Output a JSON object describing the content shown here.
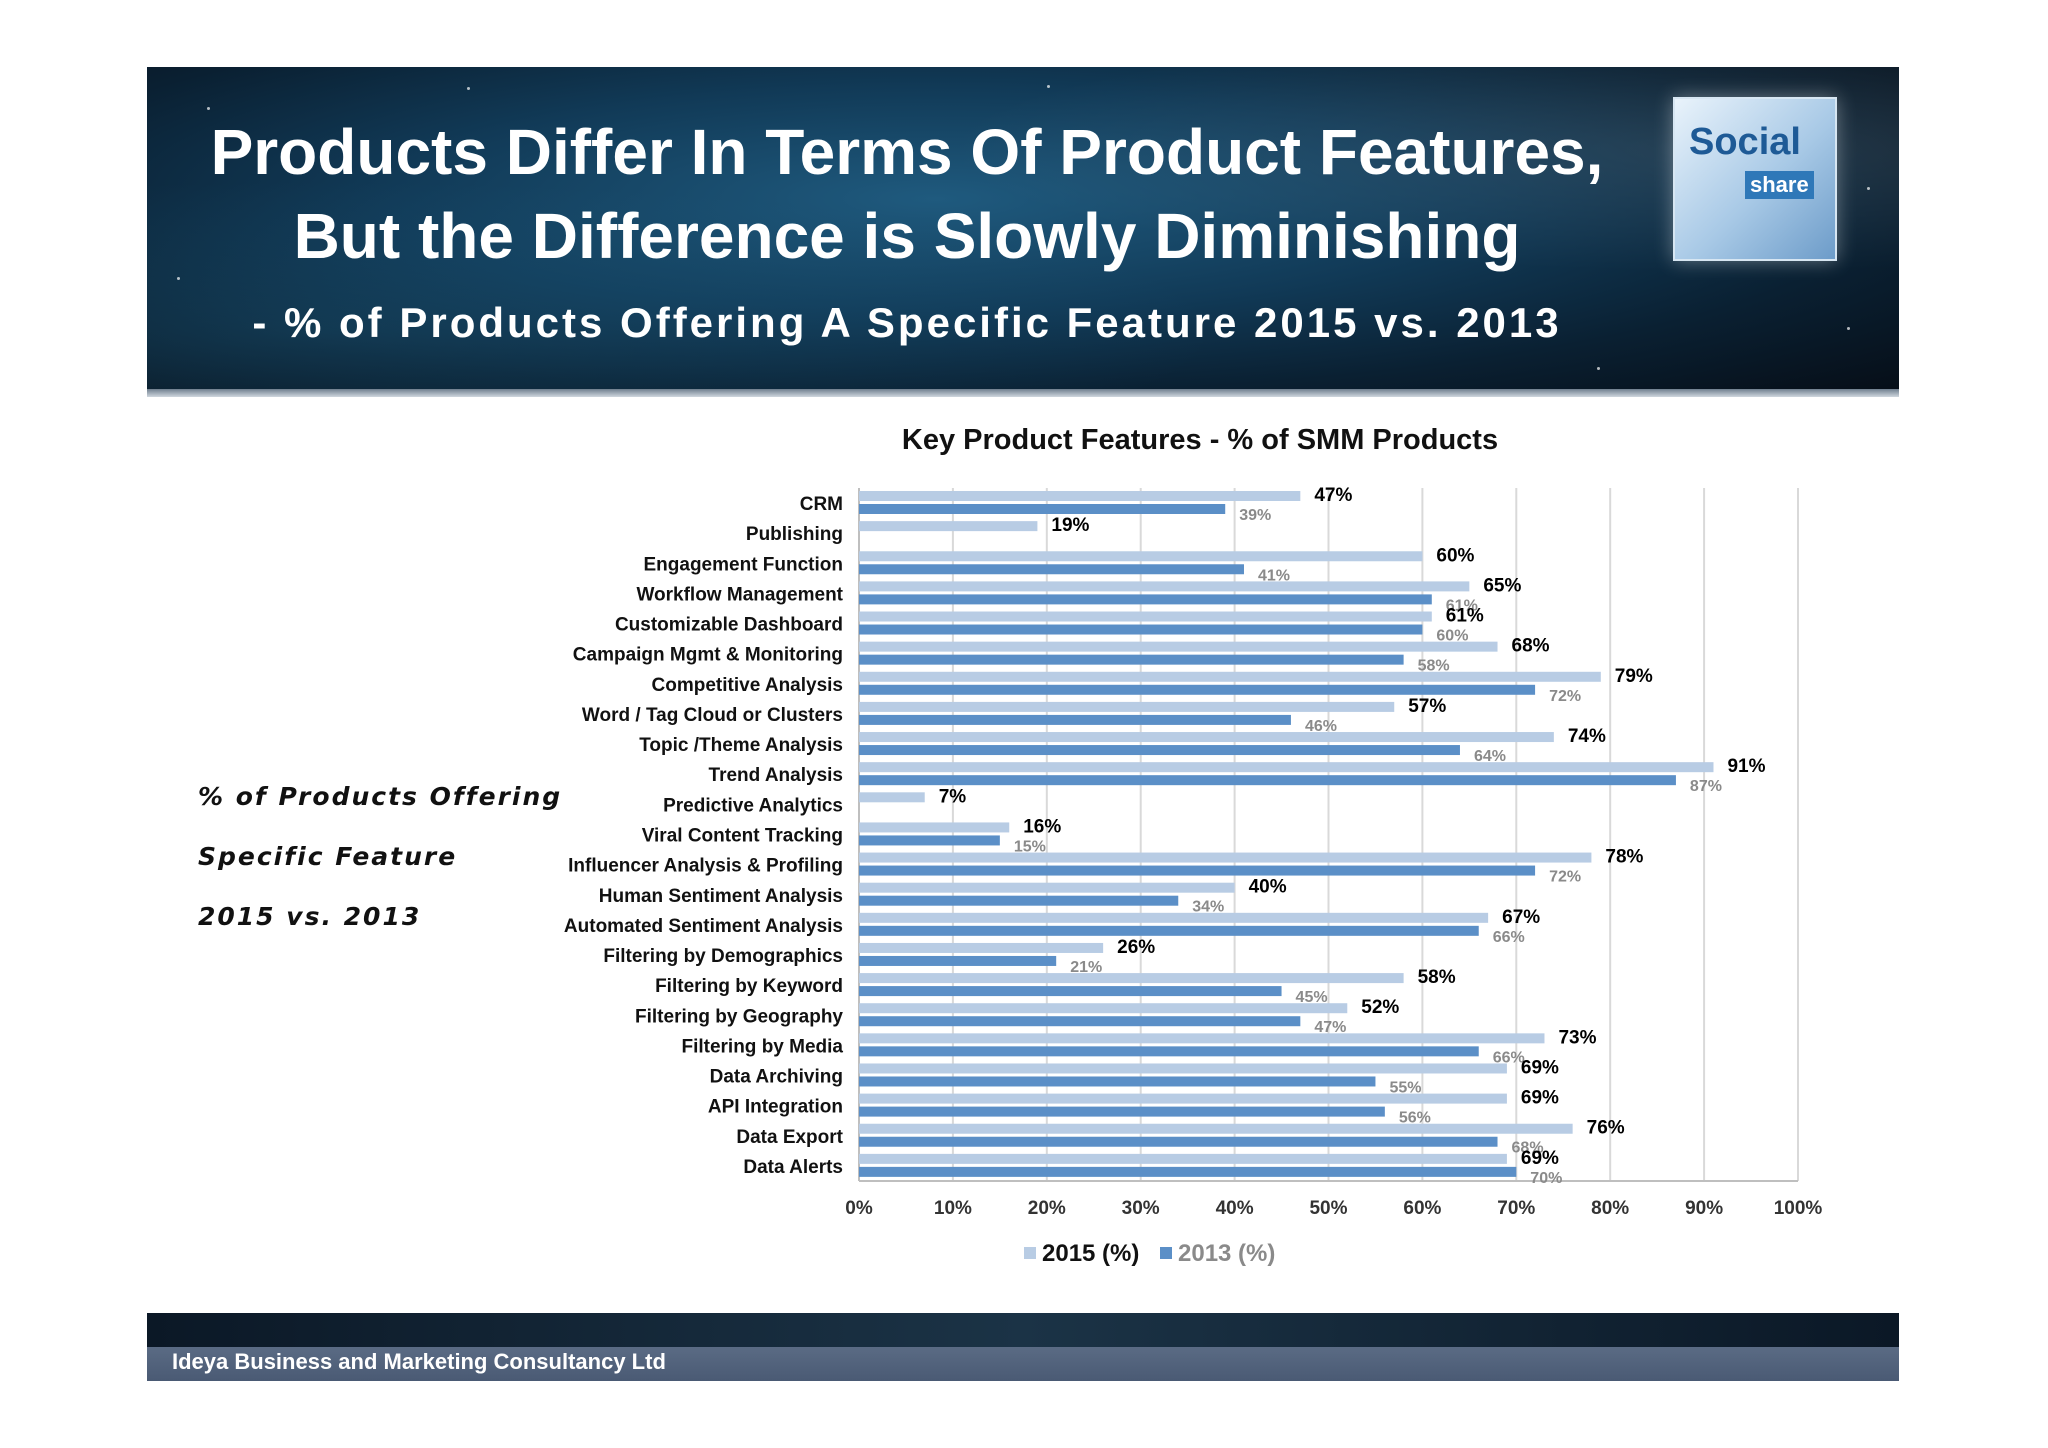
{
  "header": {
    "title_line1": "Products Differ In Terms Of Product Features,",
    "title_line2": "But the Difference is Slowly Diminishing",
    "subtitle": "- % of Products Offering A Specific Feature 2015 vs. 2013",
    "cube_icon": "social-media-cube-image",
    "cube_text": "Social",
    "cube_text2": "share"
  },
  "side_note": [
    "% of Products Offering",
    "Specific Feature",
    "2015 vs. 2013"
  ],
  "footer": {
    "company": "Ideya Business and Marketing Consultancy Ltd"
  },
  "colors": {
    "series_2015": "#b8cce4",
    "series_2013": "#5b8fc7",
    "label_2015": "#000000",
    "label_2013": "#8a8a8a",
    "grid": "#d9d9d9"
  },
  "chart_data": {
    "type": "bar",
    "orientation": "horizontal",
    "title": "Key Product Features - % of SMM Products",
    "xlabel": "",
    "ylabel": "",
    "xlim": [
      0,
      100
    ],
    "x_ticks": [
      "0%",
      "10%",
      "20%",
      "30%",
      "40%",
      "50%",
      "60%",
      "70%",
      "80%",
      "90%",
      "100%"
    ],
    "grid": true,
    "legend_position": "bottom",
    "categories": [
      "CRM",
      "Publishing",
      "Engagement Function",
      "Workflow Management",
      "Customizable Dashboard",
      "Campaign Mgmt & Monitoring",
      "Competitive Analysis",
      "Word / Tag Cloud or Clusters",
      "Topic /Theme Analysis",
      "Trend Analysis",
      "Predictive Analytics",
      "Viral Content Tracking",
      "Influencer Analysis & Profiling",
      "Human Sentiment Analysis",
      "Automated Sentiment Analysis",
      "Filtering by Demographics",
      "Filtering by Keyword",
      "Filtering by Geography",
      "Filtering by Media",
      "Data Archiving",
      "API Integration",
      "Data Export",
      "Data Alerts"
    ],
    "series": [
      {
        "name": "2015 (%)",
        "values": [
          47,
          19,
          60,
          65,
          61,
          68,
          79,
          57,
          74,
          91,
          7,
          16,
          78,
          40,
          67,
          26,
          58,
          52,
          73,
          69,
          69,
          76,
          69
        ],
        "labels": [
          "47%",
          "19%",
          "60%",
          "65%",
          "61%",
          "68%",
          "79%",
          "57%",
          "74%",
          "91%",
          "7%",
          "16%",
          "78%",
          "40%",
          "67%",
          "26%",
          "58%",
          "52%",
          "73%",
          "69%",
          "69%",
          "76%",
          "69%"
        ]
      },
      {
        "name": "2013 (%)",
        "values": [
          39,
          null,
          41,
          61,
          60,
          58,
          72,
          46,
          64,
          87,
          null,
          15,
          72,
          34,
          66,
          21,
          45,
          47,
          66,
          55,
          56,
          68,
          70
        ],
        "labels": [
          "39%",
          null,
          "41%",
          "61%",
          "60%",
          "58%",
          "72%",
          "46%",
          "64%",
          "87%",
          null,
          "15%",
          "72%",
          "34%",
          "66%",
          "21%",
          "45%",
          "47%",
          "66%",
          "55%",
          "56%",
          "68%",
          "70%"
        ]
      }
    ]
  }
}
